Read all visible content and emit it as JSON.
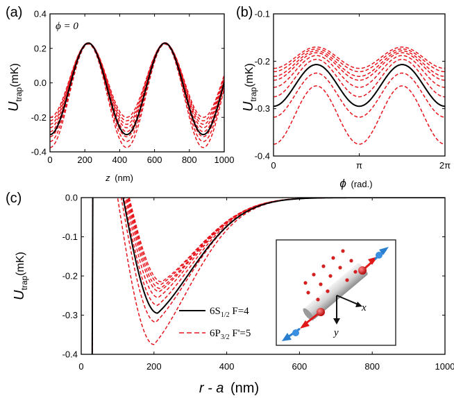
{
  "chart_data": [
    {
      "panel": "(a)",
      "type": "line",
      "annotation": "ϕ = 0",
      "xlabel": "z",
      "xunit": "(nm)",
      "ylabel_main": "U",
      "ylabel_sub": "trap",
      "ylabel_unit": "(mK)",
      "xlim": [
        0,
        1000
      ],
      "ylim": [
        -0.4,
        0.4
      ],
      "xticks": [
        0,
        200,
        400,
        600,
        800,
        1000
      ],
      "yticks": [
        -0.4,
        -0.2,
        0.0,
        0.2,
        0.4
      ],
      "ytick_labels": [
        "-0.4",
        "-0.2",
        "0.0",
        "0.2",
        "0.4"
      ],
      "model": "offset + amplitude * (-cos(2*pi*z/period))",
      "period_nm": 440,
      "series": [
        {
          "state": "6S1/2 F=4",
          "style": "solid",
          "color": "#000000",
          "offset": -0.035,
          "amplitude": 0.265
        },
        {
          "state": "6P3/2 F'=5",
          "style": "dashed",
          "color": "#e8121b",
          "offset": -0.075,
          "amplitude": 0.3
        },
        {
          "state": "6P3/2 F'=5",
          "style": "dashed",
          "color": "#e8121b",
          "offset": -0.055,
          "amplitude": 0.285
        },
        {
          "state": "6P3/2 F'=5",
          "style": "dashed",
          "color": "#e8121b",
          "offset": -0.04,
          "amplitude": 0.272
        },
        {
          "state": "6P3/2 F'=5",
          "style": "dashed",
          "color": "#e8121b",
          "offset": -0.025,
          "amplitude": 0.258
        },
        {
          "state": "6P3/2 F'=5",
          "style": "dashed",
          "color": "#e8121b",
          "offset": -0.015,
          "amplitude": 0.245
        },
        {
          "state": "6P3/2 F'=5",
          "style": "dashed",
          "color": "#e8121b",
          "offset": -0.005,
          "amplitude": 0.235
        },
        {
          "state": "6P3/2 F'=5",
          "style": "dashed",
          "color": "#e8121b",
          "offset": 0.005,
          "amplitude": 0.225
        },
        {
          "state": "6P3/2 F'=5",
          "style": "dashed",
          "color": "#e8121b",
          "offset": 0.015,
          "amplitude": 0.215
        }
      ]
    },
    {
      "panel": "(b)",
      "type": "line",
      "xlabel": "ϕ",
      "xunit": "(rad.)",
      "ylabel_main": "U",
      "ylabel_sub": "trap",
      "ylabel_unit": "(mK)",
      "xlim": [
        0,
        6.2832
      ],
      "ylim": [
        -0.4,
        -0.1
      ],
      "xticks": [
        0,
        3.1416,
        6.2832
      ],
      "xtick_labels": [
        "0",
        "π",
        "2π"
      ],
      "yticks": [
        -0.4,
        -0.3,
        -0.2,
        -0.1
      ],
      "ytick_labels": [
        "-0.4",
        "-0.3",
        "-0.2",
        "-0.1"
      ],
      "model": "y0 + (y_peak - y0) * sin(phi)^2",
      "series": [
        {
          "state": "6S1/2 F=4",
          "style": "solid",
          "color": "#000000",
          "y_at_0": -0.295,
          "y_peak": -0.207
        },
        {
          "state": "6P3/2 F'=5",
          "style": "dashed",
          "color": "#e8121b",
          "y_at_0": -0.375,
          "y_peak": -0.252
        },
        {
          "state": "6P3/2 F'=5",
          "style": "dashed",
          "color": "#e8121b",
          "y_at_0": -0.318,
          "y_peak": -0.225
        },
        {
          "state": "6P3/2 F'=5",
          "style": "dashed",
          "color": "#e8121b",
          "y_at_0": -0.275,
          "y_peak": -0.196
        },
        {
          "state": "6P3/2 F'=5",
          "style": "dashed",
          "color": "#e8121b",
          "y_at_0": -0.255,
          "y_peak": -0.188
        },
        {
          "state": "6P3/2 F'=5",
          "style": "dashed",
          "color": "#e8121b",
          "y_at_0": -0.24,
          "y_peak": -0.182
        },
        {
          "state": "6P3/2 F'=5",
          "style": "dashed",
          "color": "#e8121b",
          "y_at_0": -0.232,
          "y_peak": -0.178
        },
        {
          "state": "6P3/2 F'=5",
          "style": "dashed",
          "color": "#e8121b",
          "y_at_0": -0.222,
          "y_peak": -0.174
        },
        {
          "state": "6P3/2 F'=5",
          "style": "dashed",
          "color": "#e8121b",
          "y_at_0": -0.215,
          "y_peak": -0.17
        }
      ]
    },
    {
      "panel": "(c)",
      "type": "line",
      "xlabel": "r - a",
      "xunit": "(nm)",
      "ylabel_main": "U",
      "ylabel_sub": "trap",
      "ylabel_unit": "(mK)",
      "xlim": [
        0,
        1000
      ],
      "ylim": [
        -0.4,
        0.0
      ],
      "xticks": [
        0,
        200,
        400,
        600,
        800,
        1000
      ],
      "yticks": [
        -0.4,
        -0.3,
        -0.2,
        -0.1,
        0.0
      ],
      "ytick_labels": [
        "-0.4",
        "-0.3",
        "-0.2",
        "-0.1",
        "0.0"
      ],
      "wall_nm": 30,
      "series": [
        {
          "state": "6S1/2 F=4",
          "style": "solid",
          "color": "#000000",
          "min_nm": 210,
          "min_mK": -0.295,
          "zero_nm": 115
        },
        {
          "state": "6P3/2 F'=5",
          "style": "dashed",
          "color": "#e8121b",
          "min_nm": 200,
          "min_mK": -0.375,
          "zero_nm": 100
        },
        {
          "state": "6P3/2 F'=5",
          "style": "dashed",
          "color": "#e8121b",
          "min_nm": 205,
          "min_mK": -0.318,
          "zero_nm": 110
        },
        {
          "state": "6P3/2 F'=5",
          "style": "dashed",
          "color": "#e8121b",
          "min_nm": 210,
          "min_mK": -0.275,
          "zero_nm": 118
        },
        {
          "state": "6P3/2 F'=5",
          "style": "dashed",
          "color": "#e8121b",
          "min_nm": 212,
          "min_mK": -0.255,
          "zero_nm": 122
        },
        {
          "state": "6P3/2 F'=5",
          "style": "dashed",
          "color": "#e8121b",
          "min_nm": 215,
          "min_mK": -0.24,
          "zero_nm": 125
        },
        {
          "state": "6P3/2 F'=5",
          "style": "dashed",
          "color": "#e8121b",
          "min_nm": 217,
          "min_mK": -0.232,
          "zero_nm": 128
        },
        {
          "state": "6P3/2 F'=5",
          "style": "dashed",
          "color": "#e8121b",
          "min_nm": 219,
          "min_mK": -0.222,
          "zero_nm": 130
        },
        {
          "state": "6P3/2 F'=5",
          "style": "dashed",
          "color": "#e8121b",
          "min_nm": 221,
          "min_mK": -0.215,
          "zero_nm": 132
        }
      ],
      "legend": {
        "placement": "lower-middle",
        "entries": [
          {
            "style": "solid",
            "color": "#000000",
            "text_main": "6S",
            "text_sub": "1/2",
            "text_rest": " F=4"
          },
          {
            "style": "dashed",
            "color": "#e8121b",
            "text_main": "6P",
            "text_sub": "3/2",
            "text_rest": " F'=5"
          }
        ]
      },
      "inset": {
        "placement": "lower-right",
        "axis_x": "x",
        "axis_y": "y",
        "colors": {
          "fiber": "#c8c8c8",
          "atom": "#d42020",
          "beam_red": "#e01818",
          "beam_blue": "#2a7fd0"
        }
      }
    }
  ]
}
